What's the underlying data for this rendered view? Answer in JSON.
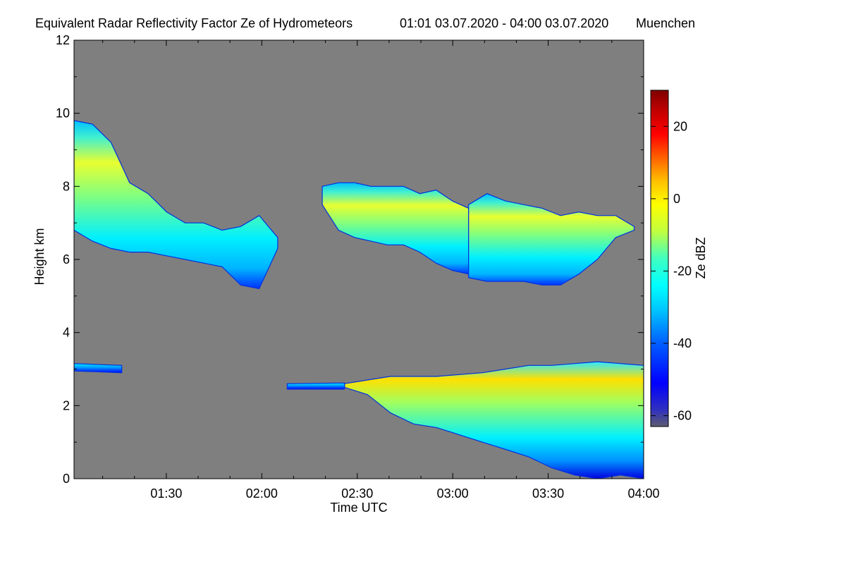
{
  "chart_data": {
    "type": "heatmap",
    "title": "Equivalent Radar Reflectivity Factor Ze of Hydrometeors",
    "period": "01:01 03.07.2020 - 04:00 03.07.2020",
    "location": "Muenchen",
    "xlabel": "Time UTC",
    "ylabel": "Height km",
    "x_unit": "minutes after 00:00 UTC",
    "xlim": [
      61,
      240
    ],
    "ylim": [
      0,
      12
    ],
    "x_ticks": [
      90,
      120,
      150,
      180,
      210,
      240
    ],
    "x_tick_labels": [
      "01:30",
      "02:00",
      "02:30",
      "03:00",
      "03:30",
      "04:00"
    ],
    "y_ticks": [
      0,
      2,
      4,
      6,
      8,
      10,
      12
    ],
    "y_tick_labels": [
      "0",
      "2",
      "4",
      "6",
      "8",
      "10",
      "12"
    ],
    "background_color": "#7f7f7f",
    "colorbar": {
      "label": "Ze dBZ",
      "range": [
        -63,
        30
      ],
      "ticks": [
        20,
        0,
        -20,
        -40,
        -60
      ],
      "tick_labels": [
        "20",
        "0",
        "-20",
        "-40",
        "-60"
      ],
      "colormap": [
        "#5c5c6e",
        "#3030c0",
        "#0000ff",
        "#0060ff",
        "#00c8ff",
        "#00ffff",
        "#40ffc0",
        "#c0ff40",
        "#ffff00",
        "#ffc000",
        "#ff6000",
        "#ff0000",
        "#c00000",
        "#800000"
      ]
    },
    "regions": [
      {
        "name": "upper-cloud-1",
        "start": 61,
        "end": 125,
        "bottom": [
          6.8,
          6.5,
          6.3,
          6.2,
          6.2,
          6.1,
          6.0,
          5.9,
          5.8,
          5.3,
          5.2,
          6.3
        ],
        "top": [
          9.8,
          9.7,
          9.2,
          8.1,
          7.8,
          7.3,
          7.0,
          7.0,
          6.8,
          6.9,
          7.2,
          6.6
        ],
        "peak_dbz": -5
      },
      {
        "name": "upper-cloud-2",
        "start": 139,
        "end": 185,
        "bottom": [
          7.5,
          6.8,
          6.6,
          6.5,
          6.4,
          6.4,
          6.2,
          5.9,
          5.7,
          5.6
        ],
        "top": [
          8.0,
          8.1,
          8.1,
          8.0,
          8.0,
          8.0,
          7.8,
          7.9,
          7.6,
          7.4
        ],
        "peak_dbz": -5
      },
      {
        "name": "upper-cloud-3",
        "start": 185,
        "end": 237,
        "bottom": [
          5.5,
          5.4,
          5.4,
          5.4,
          5.3,
          5.3,
          5.6,
          6.0,
          6.6,
          6.8
        ],
        "top": [
          7.5,
          7.8,
          7.6,
          7.5,
          7.4,
          7.2,
          7.3,
          7.2,
          7.2,
          6.9
        ],
        "peak_dbz": 0
      },
      {
        "name": "melting-layer-precipitation",
        "start": 146,
        "end": 240,
        "bottom": [
          2.5,
          2.3,
          1.8,
          1.5,
          1.4,
          1.2,
          1.0,
          0.8,
          0.6,
          0.3,
          0.1,
          0.0,
          0.1,
          0.0
        ],
        "top": [
          2.6,
          2.7,
          2.8,
          2.8,
          2.8,
          2.85,
          2.9,
          3.0,
          3.1,
          3.1,
          3.15,
          3.2,
          3.15,
          3.1
        ],
        "peak_dbz": 5
      },
      {
        "name": "low-thin-layer",
        "start": 128,
        "end": 146,
        "bottom": [
          2.45,
          2.45
        ],
        "top": [
          2.6,
          2.62
        ],
        "peak_dbz": -25
      },
      {
        "name": "low-patch-left",
        "start": 61,
        "end": 76,
        "bottom": [
          2.95,
          2.9
        ],
        "top": [
          3.15,
          3.1
        ],
        "peak_dbz": -35
      }
    ]
  }
}
